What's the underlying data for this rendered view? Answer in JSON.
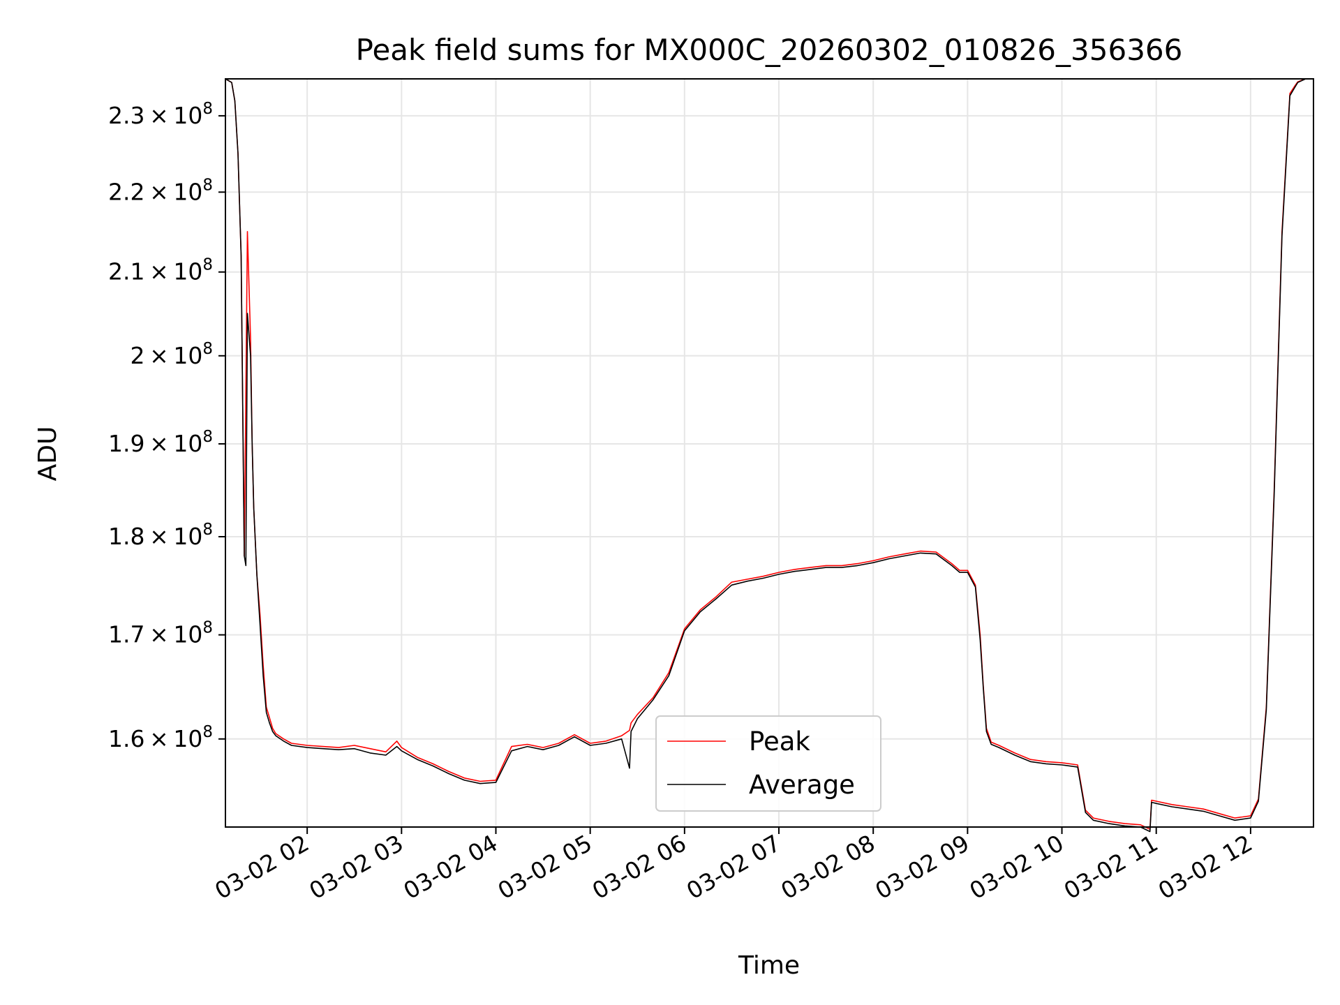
{
  "chart_data": {
    "type": "line",
    "title": "Peak field sums for MX000C_20260302_010826_356366",
    "xlabel": "Time",
    "ylabel": "ADU",
    "xlim": [
      "03-02 01:08",
      "03-02 12:40"
    ],
    "ylim": [
      152000000,
      235000000
    ],
    "yscale": "log",
    "grid": true,
    "legend_position": "lower-center",
    "x_ticks": [
      "03-02 02",
      "03-02 03",
      "03-02 04",
      "03-02 05",
      "03-02 06",
      "03-02 07",
      "03-02 08",
      "03-02 09",
      "03-02 10",
      "03-02 11",
      "03-02 12"
    ],
    "x_tick_values": [
      "03-02 02:00",
      "03-02 03:00",
      "03-02 04:00",
      "03-02 05:00",
      "03-02 06:00",
      "03-02 07:00",
      "03-02 08:00",
      "03-02 09:00",
      "03-02 10:00",
      "03-02 11:00",
      "03-02 12:00"
    ],
    "y_ticks": [
      {
        "value": 230000000,
        "mantissa": "2.3",
        "exp": "8"
      },
      {
        "value": 220000000,
        "mantissa": "2.2",
        "exp": "8"
      },
      {
        "value": 210000000,
        "mantissa": "2.1",
        "exp": "8"
      },
      {
        "value": 200000000,
        "mantissa": "2",
        "exp": "8"
      },
      {
        "value": 190000000,
        "mantissa": "1.9",
        "exp": "8"
      },
      {
        "value": 180000000,
        "mantissa": "1.8",
        "exp": "8"
      },
      {
        "value": 170000000,
        "mantissa": "1.7",
        "exp": "8"
      },
      {
        "value": 160000000,
        "mantissa": "1.6",
        "exp": "8"
      }
    ],
    "series": [
      {
        "name": "Peak",
        "color": "#ff0000",
        "x": [
          "03-02 01:08",
          "03-02 01:12",
          "03-02 01:14",
          "03-02 01:16",
          "03-02 01:18",
          "03-02 01:20",
          "03-02 01:22",
          "03-02 01:24",
          "03-02 01:25",
          "03-02 01:26",
          "03-02 01:28",
          "03-02 01:30",
          "03-02 01:32",
          "03-02 01:34",
          "03-02 01:36",
          "03-02 01:38",
          "03-02 01:40",
          "03-02 01:45",
          "03-02 01:50",
          "03-02 02:00",
          "03-02 02:10",
          "03-02 02:20",
          "03-02 02:30",
          "03-02 02:40",
          "03-02 02:50",
          "03-02 02:57",
          "03-02 03:00",
          "03-02 03:10",
          "03-02 03:20",
          "03-02 03:30",
          "03-02 03:40",
          "03-02 03:50",
          "03-02 04:00",
          "03-02 04:10",
          "03-02 04:20",
          "03-02 04:30",
          "03-02 04:40",
          "03-02 04:50",
          "03-02 05:00",
          "03-02 05:10",
          "03-02 05:20",
          "03-02 05:25",
          "03-02 05:26",
          "03-02 05:30",
          "03-02 05:40",
          "03-02 05:50",
          "03-02 06:00",
          "03-02 06:10",
          "03-02 06:20",
          "03-02 06:30",
          "03-02 06:40",
          "03-02 06:50",
          "03-02 07:00",
          "03-02 07:10",
          "03-02 07:20",
          "03-02 07:30",
          "03-02 07:40",
          "03-02 07:50",
          "03-02 08:00",
          "03-02 08:10",
          "03-02 08:20",
          "03-02 08:30",
          "03-02 08:40",
          "03-02 08:50",
          "03-02 08:55",
          "03-02 09:00",
          "03-02 09:05",
          "03-02 09:08",
          "03-02 09:10",
          "03-02 09:12",
          "03-02 09:15",
          "03-02 09:20",
          "03-02 09:30",
          "03-02 09:40",
          "03-02 09:50",
          "03-02 10:00",
          "03-02 10:10",
          "03-02 10:15",
          "03-02 10:20",
          "03-02 10:30",
          "03-02 10:40",
          "03-02 10:50",
          "03-02 10:56",
          "03-02 10:57",
          "03-02 11:00",
          "03-02 11:10",
          "03-02 11:20",
          "03-02 11:30",
          "03-02 11:40",
          "03-02 11:50",
          "03-02 12:00",
          "03-02 12:05",
          "03-02 12:10",
          "03-02 12:15",
          "03-02 12:20",
          "03-02 12:25",
          "03-02 12:28",
          "03-02 12:30",
          "03-02 12:35",
          "03-02 12:40"
        ],
        "y": [
          235000000,
          234500000,
          232000000,
          225000000,
          212000000,
          178000000,
          215000000,
          202000000,
          190000000,
          183000000,
          176000000,
          172000000,
          167000000,
          163000000,
          162000000,
          161000000,
          160500000,
          160000000,
          159600000,
          159400000,
          159300000,
          159200000,
          159400000,
          159100000,
          158800000,
          159800000,
          159200000,
          158300000,
          157700000,
          157000000,
          156400000,
          156100000,
          156200000,
          159300000,
          159500000,
          159200000,
          159600000,
          160400000,
          159600000,
          159800000,
          160300000,
          160800000,
          161500000,
          162300000,
          163900000,
          166300000,
          170600000,
          172500000,
          173800000,
          175300000,
          175600000,
          175900000,
          176300000,
          176600000,
          176800000,
          177000000,
          177000000,
          177200000,
          177500000,
          177900000,
          178200000,
          178500000,
          178400000,
          177200000,
          176500000,
          176500000,
          175000000,
          170000000,
          165000000,
          161000000,
          159700000,
          159400000,
          158700000,
          158100000,
          157900000,
          157800000,
          157600000,
          153500000,
          152800000,
          152500000,
          152300000,
          152200000,
          151800000,
          154400000,
          154300000,
          154000000,
          153800000,
          153600000,
          153200000,
          152800000,
          153000000,
          154500000,
          163000000,
          185000000,
          215000000,
          233000000,
          234000000,
          234600000,
          235000000,
          235000000
        ]
      },
      {
        "name": "Average",
        "color": "#000000",
        "x": [
          "03-02 01:08",
          "03-02 01:12",
          "03-02 01:14",
          "03-02 01:16",
          "03-02 01:18",
          "03-02 01:20",
          "03-02 01:21",
          "03-02 01:22",
          "03-02 01:24",
          "03-02 01:25",
          "03-02 01:26",
          "03-02 01:28",
          "03-02 01:30",
          "03-02 01:32",
          "03-02 01:34",
          "03-02 01:36",
          "03-02 01:38",
          "03-02 01:40",
          "03-02 01:45",
          "03-02 01:50",
          "03-02 02:00",
          "03-02 02:10",
          "03-02 02:20",
          "03-02 02:30",
          "03-02 02:40",
          "03-02 02:50",
          "03-02 02:57",
          "03-02 03:00",
          "03-02 03:10",
          "03-02 03:20",
          "03-02 03:30",
          "03-02 03:40",
          "03-02 03:50",
          "03-02 04:00",
          "03-02 04:10",
          "03-02 04:20",
          "03-02 04:30",
          "03-02 04:40",
          "03-02 04:50",
          "03-02 05:00",
          "03-02 05:10",
          "03-02 05:20",
          "03-02 05:25",
          "03-02 05:26",
          "03-02 05:30",
          "03-02 05:40",
          "03-02 05:50",
          "03-02 06:00",
          "03-02 06:10",
          "03-02 06:20",
          "03-02 06:30",
          "03-02 06:40",
          "03-02 06:50",
          "03-02 07:00",
          "03-02 07:10",
          "03-02 07:20",
          "03-02 07:30",
          "03-02 07:40",
          "03-02 07:50",
          "03-02 08:00",
          "03-02 08:10",
          "03-02 08:20",
          "03-02 08:30",
          "03-02 08:40",
          "03-02 08:50",
          "03-02 08:55",
          "03-02 09:00",
          "03-02 09:05",
          "03-02 09:08",
          "03-02 09:10",
          "03-02 09:12",
          "03-02 09:15",
          "03-02 09:20",
          "03-02 09:30",
          "03-02 09:40",
          "03-02 09:50",
          "03-02 10:00",
          "03-02 10:10",
          "03-02 10:15",
          "03-02 10:20",
          "03-02 10:30",
          "03-02 10:40",
          "03-02 10:50",
          "03-02 10:56",
          "03-02 10:57",
          "03-02 11:00",
          "03-02 11:10",
          "03-02 11:20",
          "03-02 11:30",
          "03-02 11:40",
          "03-02 11:50",
          "03-02 12:00",
          "03-02 12:05",
          "03-02 12:10",
          "03-02 12:15",
          "03-02 12:20",
          "03-02 12:25",
          "03-02 12:28",
          "03-02 12:30",
          "03-02 12:35",
          "03-02 12:40"
        ],
        "y": [
          235000000,
          234500000,
          232000000,
          225000000,
          212000000,
          178000000,
          177000000,
          205000000,
          200000000,
          190000000,
          183000000,
          176000000,
          171000000,
          166000000,
          162500000,
          161500000,
          160700000,
          160300000,
          159800000,
          159400000,
          159200000,
          159100000,
          159000000,
          159100000,
          158700000,
          158500000,
          159300000,
          158900000,
          158100000,
          157500000,
          156800000,
          156200000,
          155900000,
          156000000,
          158900000,
          159300000,
          159000000,
          159400000,
          160200000,
          159400000,
          159600000,
          160000000,
          157300000,
          160700000,
          161900000,
          163700000,
          166000000,
          170400000,
          172300000,
          173600000,
          175000000,
          175400000,
          175700000,
          176100000,
          176400000,
          176600000,
          176800000,
          176800000,
          177000000,
          177300000,
          177700000,
          178000000,
          178300000,
          178200000,
          177000000,
          176300000,
          176300000,
          174800000,
          169500000,
          164800000,
          160700000,
          159500000,
          159200000,
          158500000,
          157900000,
          157700000,
          157600000,
          157400000,
          153300000,
          152600000,
          152300000,
          152100000,
          152000000,
          151600000,
          154200000,
          154100000,
          153800000,
          153600000,
          153400000,
          153000000,
          152600000,
          152800000,
          154300000,
          162700000,
          184500000,
          214500000,
          232700000,
          233800000,
          234500000,
          235000000,
          235000000
        ]
      }
    ]
  }
}
